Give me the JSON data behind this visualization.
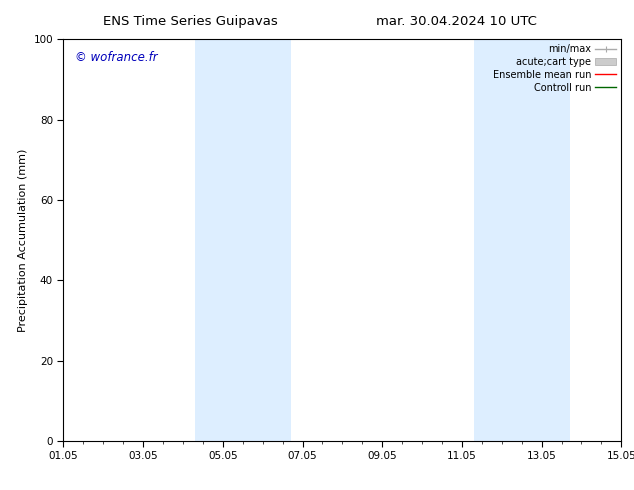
{
  "title_left": "ENS Time Series Guipavas",
  "title_right": "mar. 30.04.2024 10 UTC",
  "ylabel": "Precipitation Accumulation (mm)",
  "watermark": "© wofrance.fr",
  "watermark_color": "#0000bb",
  "ylim": [
    0,
    100
  ],
  "yticks": [
    0,
    20,
    40,
    60,
    80,
    100
  ],
  "xticks": [
    "01.05",
    "03.05",
    "05.05",
    "07.05",
    "09.05",
    "11.05",
    "13.05",
    "15.05"
  ],
  "xtick_positions": [
    0,
    2,
    4,
    6,
    8,
    10,
    12,
    14
  ],
  "shaded_regions": [
    {
      "x_start": 3.3,
      "x_end": 4.3
    },
    {
      "x_start": 4.3,
      "x_end": 5.7
    },
    {
      "x_start": 10.3,
      "x_end": 11.3
    },
    {
      "x_start": 11.3,
      "x_end": 12.7
    }
  ],
  "shaded_color": "#ddeeff",
  "bg_color": "#ffffff",
  "title_fontsize": 9.5,
  "tick_fontsize": 7.5,
  "ylabel_fontsize": 8,
  "watermark_fontsize": 8.5,
  "legend_fontsize": 7
}
